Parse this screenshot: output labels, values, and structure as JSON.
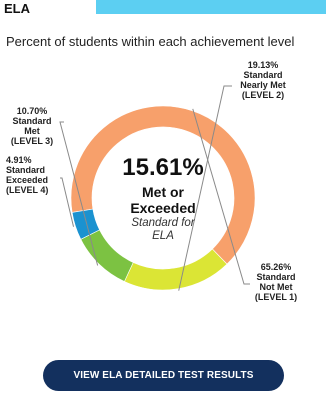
{
  "section": {
    "title": "ELA"
  },
  "subtitle": "Percent of students within each achievement level",
  "center": {
    "percent": "15.61%",
    "line1": "Met or",
    "line2": "Exceeded",
    "italic1": "Standard for",
    "italic2": "ELA"
  },
  "labels": {
    "level2": [
      "19.13%",
      "Standard",
      "Nearly Met",
      "(LEVEL 2)"
    ],
    "level3": [
      "10.70%",
      "Standard",
      "Met",
      "(LEVEL 3)"
    ],
    "level4": [
      "4.91%",
      "Standard",
      "Exceeded",
      "(LEVEL 4)"
    ],
    "level1": [
      "65.26%",
      "Standard",
      "Not Met",
      "(LEVEL 1)"
    ]
  },
  "button": {
    "label": "VIEW ELA DETAILED TEST RESULTS"
  },
  "colors": {
    "band": "#5ccff2",
    "level1": "#f7a06b",
    "level2": "#dbe535",
    "level3": "#7cc242",
    "level4": "#1b92d0",
    "button": "#13305e"
  },
  "chart_data": {
    "type": "pie",
    "title": "Percent of students within each achievement level",
    "categories": [
      "Standard Not Met (LEVEL 1)",
      "Standard Nearly Met (LEVEL 2)",
      "Standard Met (LEVEL 3)",
      "Standard Exceeded (LEVEL 4)"
    ],
    "values": [
      65.26,
      19.13,
      10.7,
      4.91
    ],
    "colors": [
      "#f7a06b",
      "#dbe535",
      "#7cc242",
      "#1b92d0"
    ],
    "donut": true
  }
}
